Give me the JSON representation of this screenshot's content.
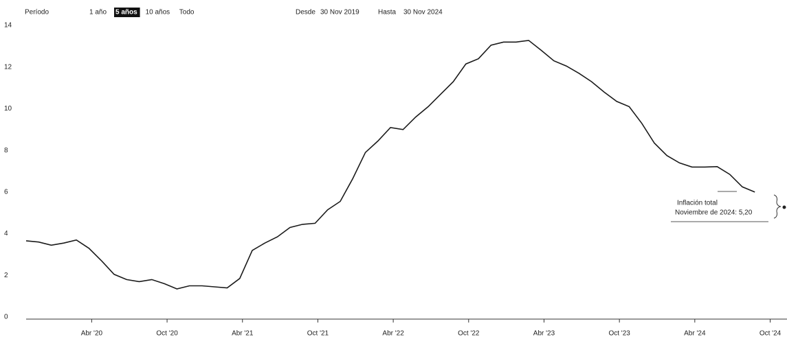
{
  "chart_data": {
    "type": "line",
    "range_selector": {
      "label": "Período",
      "buttons": [
        "1 año",
        "5 años",
        "10 años",
        "Todo"
      ],
      "selected": 1
    },
    "date_range": {
      "from_label": "Desde",
      "from": "30 Nov 2019",
      "to_label": "Hasta",
      "to": "30 Nov 2024"
    },
    "categories": [
      null,
      null,
      null,
      null,
      null,
      "Abr '20",
      null,
      null,
      null,
      null,
      null,
      "Oct '20",
      null,
      null,
      null,
      null,
      null,
      "Abr '21",
      null,
      null,
      null,
      null,
      null,
      "Oct '21",
      null,
      null,
      null,
      null,
      null,
      "Abr '22",
      null,
      null,
      null,
      null,
      null,
      "Oct '22",
      null,
      null,
      null,
      null,
      null,
      "Abr '23",
      null,
      null,
      null,
      null,
      null,
      "Oct '23",
      null,
      null,
      null,
      null,
      null,
      "Abr '24",
      null,
      null,
      null,
      null,
      null,
      "Oct '24"
    ],
    "series": [
      {
        "name": "Inflación total",
        "color": "#1a1a1a",
        "values": [
          3.66,
          3.6,
          3.45,
          3.55,
          3.7,
          3.3,
          2.7,
          2.05,
          1.8,
          1.7,
          1.8,
          1.6,
          1.35,
          1.5,
          1.5,
          1.45,
          1.4,
          1.85,
          3.2,
          3.55,
          3.85,
          4.3,
          4.45,
          4.5,
          5.15,
          5.55,
          6.65,
          7.9,
          8.45,
          9.1,
          9.0,
          9.6,
          10.1,
          10.7,
          11.3,
          12.15,
          12.4,
          13.05,
          13.2,
          13.2,
          13.28,
          12.8,
          12.3,
          12.05,
          11.7,
          11.3,
          10.8,
          10.35,
          10.1,
          9.3,
          8.35,
          7.75,
          7.4,
          7.2,
          7.2,
          7.22,
          6.85,
          6.25,
          6.0,
          null
        ]
      }
    ],
    "tooltip": {
      "text": "Noviembre de 2024: 5,20"
    },
    "ylim": [
      0,
      14
    ],
    "yticks": [
      0,
      2,
      4,
      6,
      8,
      10,
      12,
      14
    ],
    "grid": false
  }
}
